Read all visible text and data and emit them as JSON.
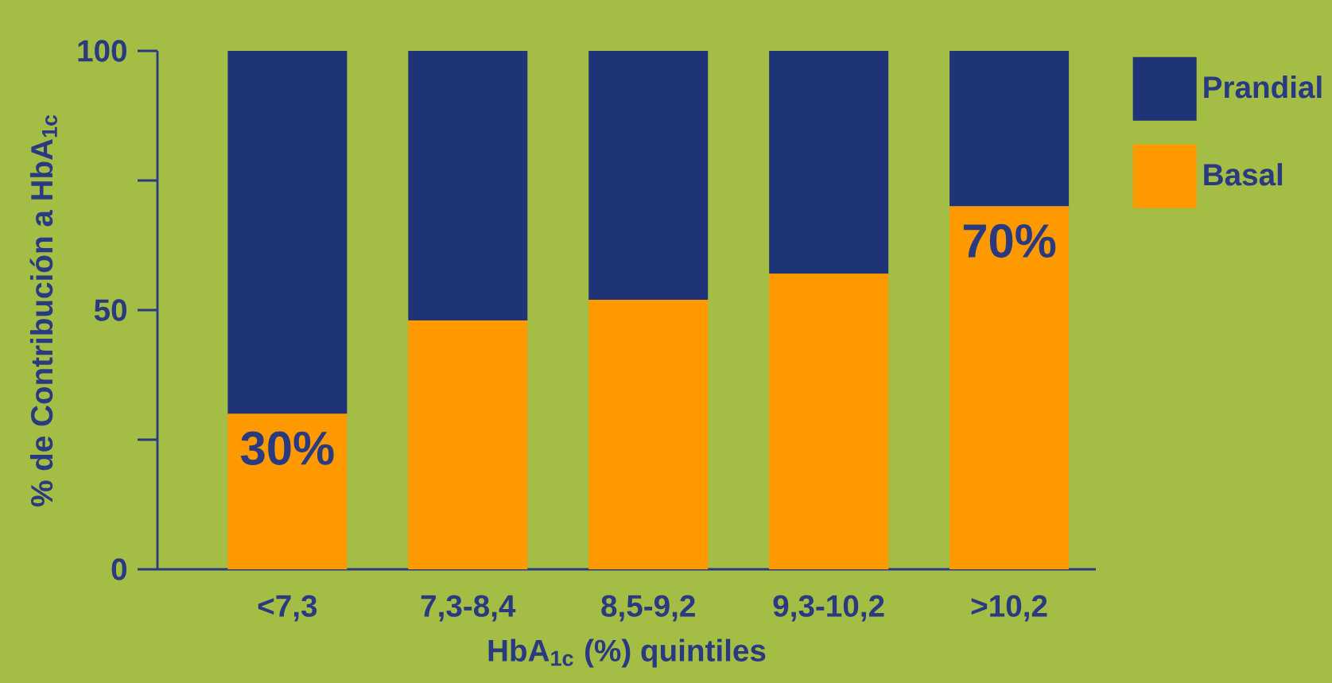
{
  "chart_data": {
    "type": "bar",
    "stacked": true,
    "xlabel": "HbA$_{1c}$ (%) quintiles",
    "ylabel": "% de Contribución a HbA$_{1c}$",
    "categories": [
      "<7,3",
      "7,3-8,4",
      "8,5-9,2",
      "9,3-10,2",
      ">10,2"
    ],
    "series": [
      {
        "name": "Basal",
        "color": "#ff9900",
        "values": [
          30,
          48,
          52,
          57,
          70
        ],
        "value_labels": [
          "30%",
          null,
          null,
          null,
          "70%"
        ]
      },
      {
        "name": "Prandial",
        "color": "#1f3377",
        "values": [
          70,
          52,
          48,
          43,
          30
        ]
      }
    ],
    "ylim": [
      0,
      100
    ],
    "yticks": [
      0,
      50,
      100
    ],
    "legend": "top right"
  }
}
